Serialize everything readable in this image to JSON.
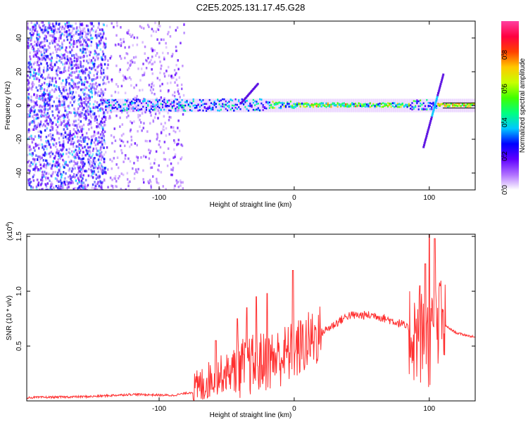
{
  "title": "C2E5.2025.131.17.45.G28",
  "chart_data": [
    {
      "type": "heatmap",
      "xlabel": "Height of straight line (km)",
      "ylabel": "Frequency (Hz)",
      "xlim": [
        -198,
        134
      ],
      "ylim": [
        -50,
        50
      ],
      "xticks": [
        -100,
        0,
        100
      ],
      "yticks": [
        -40,
        -20,
        0,
        20,
        40
      ],
      "colorbar": {
        "label": "Normalized spectral amplitude",
        "range": [
          0,
          1
        ],
        "ticks": [
          "0.0",
          "0.2",
          "0.4",
          "0.6",
          "0.8"
        ],
        "tick_values": [
          0.0,
          0.2,
          0.4,
          0.6,
          0.8
        ],
        "colors": [
          "#ffffff",
          "#b070ff",
          "#6000ff",
          "#0000ff",
          "#00c8ff",
          "#00ff80",
          "#40ff00",
          "#c8ff00",
          "#ffc800",
          "#ff4000",
          "#ff0040",
          "#ff40a0"
        ]
      },
      "features": {
        "noise_region_x": [
          -198,
          -82
        ],
        "dense_noise_x": [
          -198,
          -140
        ],
        "band_center_hz": 0,
        "band_x": [
          -140,
          134
        ],
        "rising_streak": {
          "x": [
            -40,
            -27
          ],
          "y": [
            2,
            14
          ]
        },
        "diagonal_streak": {
          "x": [
            95,
            110
          ],
          "y": [
            -24,
            20
          ]
        }
      }
    },
    {
      "type": "line",
      "xlabel": "Height of straight line (km)",
      "ylabel": "SNR (10 * v/v)",
      "ylabel_multiplier": "(x10",
      "ylabel_multiplier_exp": "4",
      "ylabel_multiplier_close": ")",
      "xlim": [
        -198,
        134
      ],
      "ylim": [
        0,
        1.52
      ],
      "xticks": [
        -100,
        0,
        100
      ],
      "yticks": [
        "0.5",
        "1.0",
        "1.5"
      ],
      "ytick_values": [
        0.5,
        1.0,
        1.5
      ],
      "color": "#ff3030",
      "series_envelope": {
        "x": [
          -198,
          -150,
          -120,
          -90,
          -75,
          -60,
          -40,
          -25,
          -15,
          0,
          20,
          40,
          60,
          80,
          90,
          100,
          110,
          120,
          134
        ],
        "y": [
          0.03,
          0.04,
          0.06,
          0.05,
          0.08,
          0.22,
          0.3,
          0.35,
          0.38,
          0.45,
          0.62,
          0.78,
          0.78,
          0.7,
          0.6,
          0.55,
          0.7,
          0.62,
          0.58
        ]
      },
      "spikes": [
        {
          "x": -58,
          "y": 0.55
        },
        {
          "x": -42,
          "y": 0.75
        },
        {
          "x": -35,
          "y": 0.85
        },
        {
          "x": -28,
          "y": 0.95
        },
        {
          "x": -20,
          "y": 0.98
        },
        {
          "x": -1,
          "y": 1.19
        },
        {
          "x": 93,
          "y": 1.05
        },
        {
          "x": 97,
          "y": 1.25
        },
        {
          "x": 100,
          "y": 1.52
        },
        {
          "x": 104,
          "y": 1.48
        },
        {
          "x": 108,
          "y": 1.05
        }
      ]
    }
  ]
}
